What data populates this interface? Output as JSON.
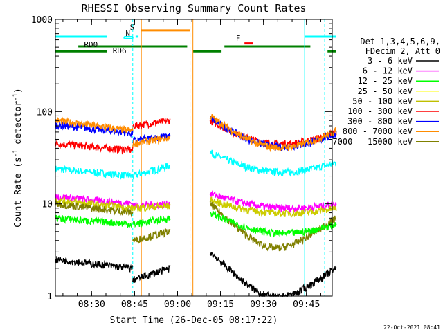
{
  "chart_data": {
    "type": "line",
    "title": "RHESSI Observing Summary Count Rates",
    "xlabel": "Start Time (26-Dec-05 08:17:22)",
    "ylabel": "Count Rate (s",
    "ylabel_sup1": "-1",
    "ylabel_mid": " detector",
    "ylabel_sup2": "-1",
    "ylabel_end": ")",
    "yscale": "log",
    "ylim": [
      1,
      1000
    ],
    "xlim": [
      "08:17:22",
      "09:54:00"
    ],
    "x_ticks": [
      "08:30",
      "08:45",
      "09:00",
      "09:15",
      "09:30",
      "09:45"
    ],
    "y_ticks": [
      "1",
      "10",
      "100",
      "1000"
    ],
    "legend": {
      "position": "right",
      "header": [
        "Det 1,3,4,5,6,9,",
        "FDecim 2, Att 0"
      ],
      "entries": [
        {
          "label": "3 - 6 keV",
          "color": "#000000"
        },
        {
          "label": "6 - 12 keV",
          "color": "#ff00ff"
        },
        {
          "label": "12 - 25 keV",
          "color": "#00ff00"
        },
        {
          "label": "25 - 50 keV",
          "color": "#ffff00"
        },
        {
          "label": "50 - 100 keV",
          "color": "#bfbf00"
        },
        {
          "label": "100 - 300 keV",
          "color": "#ff0000"
        },
        {
          "label": "300 - 800 keV",
          "color": "#0000ff"
        },
        {
          "label": "800 - 7000 keV",
          "color": "#ff8c00"
        },
        {
          "label": "7000 - 15000 keV",
          "color": "#808000"
        }
      ]
    },
    "flag_labels": {
      "saa": "S",
      "night": "N",
      "flare": "F",
      "rd0": "RD0",
      "rd6": "RD6"
    },
    "series_colors": {
      "black": "#000000",
      "magenta": "#ff00ff",
      "green": "#00ff00",
      "yellow": "#cccc00",
      "cyan": "#00ffff",
      "red": "#ff0000",
      "blue": "#0000ff",
      "orange": "#ff8c00",
      "olive": "#808000"
    },
    "series": [
      {
        "color": "cyan",
        "segments": [
          {
            "from": 0,
            "to": 27,
            "v0": 24,
            "v1": 20
          },
          {
            "from": 27,
            "to": 40,
            "v0": 20,
            "v1": 26
          },
          {
            "from": 54,
            "to": 98,
            "v0": 36,
            "v1": 28,
            "bowl": 0.3
          }
        ]
      },
      {
        "color": "red",
        "segments": [
          {
            "from": 0,
            "to": 27,
            "v0": 45,
            "v1": 38
          },
          {
            "from": 27,
            "to": 40,
            "v0": 70,
            "v1": 80
          },
          {
            "from": 54,
            "to": 98,
            "v0": 80,
            "v1": 60,
            "bowl": 0.35
          }
        ]
      },
      {
        "color": "blue",
        "segments": [
          {
            "from": 0,
            "to": 27,
            "v0": 72,
            "v1": 58
          },
          {
            "from": 27,
            "to": 40,
            "v0": 48,
            "v1": 55
          },
          {
            "from": 54,
            "to": 98,
            "v0": 85,
            "v1": 58,
            "bowl": 0.4
          }
        ]
      },
      {
        "color": "orange",
        "segments": [
          {
            "from": 0,
            "to": 27,
            "v0": 80,
            "v1": 62
          },
          {
            "from": 27,
            "to": 40,
            "v0": 45,
            "v1": 52
          },
          {
            "from": 54,
            "to": 98,
            "v0": 90,
            "v1": 62,
            "bowl": 0.45
          }
        ]
      },
      {
        "color": "magenta",
        "segments": [
          {
            "from": 0,
            "to": 27,
            "v0": 12,
            "v1": 10
          },
          {
            "from": 27,
            "to": 40,
            "v0": 9.5,
            "v1": 10
          },
          {
            "from": 54,
            "to": 98,
            "v0": 13,
            "v1": 10,
            "bowl": 0.2
          }
        ]
      },
      {
        "color": "yellow",
        "segments": [
          {
            "from": 0,
            "to": 27,
            "v0": 11,
            "v1": 9
          },
          {
            "from": 27,
            "to": 40,
            "v0": 9,
            "v1": 9.5
          },
          {
            "from": 54,
            "to": 98,
            "v0": 11,
            "v1": 9,
            "bowl": 0.2
          }
        ]
      },
      {
        "color": "olive",
        "segments": [
          {
            "from": 0,
            "to": 27,
            "v0": 10,
            "v1": 8
          },
          {
            "from": 27,
            "to": 40,
            "v0": 4,
            "v1": 5
          },
          {
            "from": 54,
            "to": 98,
            "v0": 10,
            "v1": 7,
            "bowl": 0.6
          }
        ]
      },
      {
        "color": "green",
        "segments": [
          {
            "from": 0,
            "to": 27,
            "v0": 7,
            "v1": 6
          },
          {
            "from": 27,
            "to": 40,
            "v0": 6,
            "v1": 7
          },
          {
            "from": 54,
            "to": 98,
            "v0": 8,
            "v1": 6,
            "bowl": 0.3
          }
        ]
      },
      {
        "color": "black",
        "segments": [
          {
            "from": 0,
            "to": 27,
            "v0": 2.5,
            "v1": 2
          },
          {
            "from": 27,
            "to": 40,
            "v0": 1.5,
            "v1": 2
          },
          {
            "from": 54,
            "to": 98,
            "v0": 3,
            "v1": 2,
            "bowl": 0.6
          }
        ]
      }
    ]
  },
  "footer": {
    "timestamp": "22-Oct-2021 08:41"
  }
}
